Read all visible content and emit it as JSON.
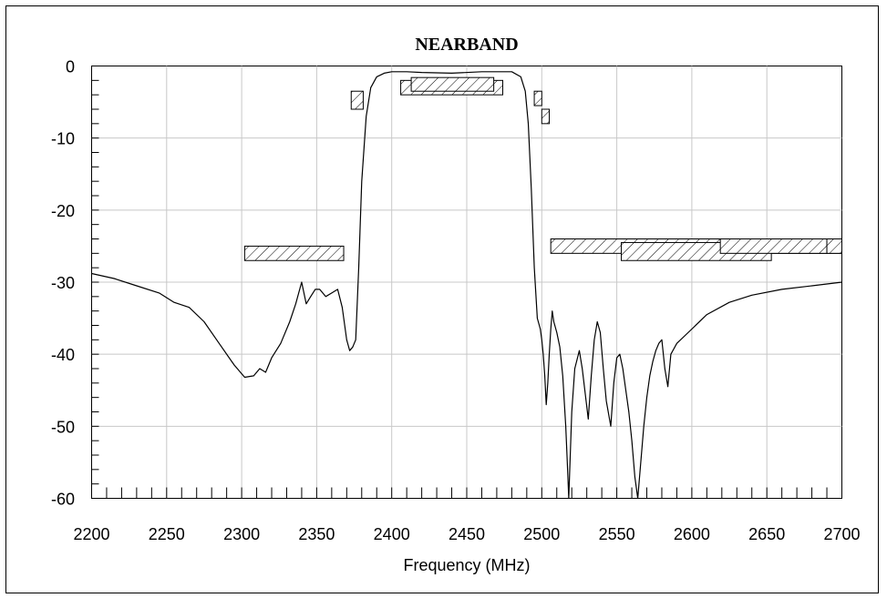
{
  "chart_data": {
    "type": "line",
    "title": "NEARBAND",
    "xlabel": "Frequency (MHz)",
    "ylabel": "",
    "xlim": [
      2200,
      2700
    ],
    "ylim": [
      -60,
      0
    ],
    "xticks": [
      2200,
      2250,
      2300,
      2350,
      2400,
      2450,
      2500,
      2550,
      2600,
      2650,
      2700
    ],
    "yticks": [
      0,
      -10,
      -20,
      -30,
      -40,
      -50,
      -60
    ],
    "grid": true,
    "series": [
      {
        "x": [
          2200,
          2215,
          2230,
          2245,
          2255,
          2265,
          2275,
          2285,
          2295,
          2302,
          2308,
          2312,
          2316,
          2320,
          2326,
          2332,
          2336,
          2340,
          2343,
          2346,
          2349,
          2352,
          2356,
          2360,
          2364,
          2367,
          2370,
          2372,
          2374,
          2376,
          2378,
          2380,
          2383,
          2386,
          2390,
          2395,
          2400,
          2410,
          2420,
          2440,
          2460,
          2480,
          2486,
          2489,
          2491,
          2493,
          2495,
          2497,
          2499,
          2500,
          2501,
          2502,
          2503,
          2504,
          2505,
          2506,
          2507,
          2508,
          2510,
          2512,
          2514,
          2516,
          2517,
          2518,
          2520,
          2522,
          2525,
          2527,
          2529,
          2531,
          2533,
          2535,
          2537,
          2539,
          2541,
          2543,
          2546,
          2548,
          2550,
          2552,
          2554,
          2556,
          2558,
          2560,
          2562,
          2564,
          2566,
          2568,
          2570,
          2572,
          2574,
          2576,
          2578,
          2580,
          2582,
          2584,
          2586,
          2590,
          2600,
          2610,
          2625,
          2640,
          2660,
          2680,
          2700
        ],
        "y": [
          -28.8,
          -29.5,
          -30.5,
          -31.5,
          -32.8,
          -33.5,
          -35.5,
          -38.5,
          -41.5,
          -43.2,
          -43.0,
          -42.0,
          -42.5,
          -40.5,
          -38.5,
          -35.5,
          -33.0,
          -30.0,
          -33.0,
          -32.0,
          -31.0,
          -31.0,
          -32.0,
          -31.5,
          -31.0,
          -33.5,
          -38.0,
          -39.5,
          -39.0,
          -38.0,
          -28.0,
          -16.0,
          -7.0,
          -3.0,
          -1.5,
          -1.0,
          -0.8,
          -0.8,
          -0.9,
          -1.0,
          -0.8,
          -0.8,
          -1.5,
          -3.5,
          -8.0,
          -17.0,
          -28.0,
          -35.0,
          -36.5,
          -38.0,
          -40.0,
          -43.0,
          -47.0,
          -44.0,
          -40.0,
          -36.5,
          -34.0,
          -35.5,
          -37.0,
          -39.0,
          -43.0,
          -50.0,
          -55.0,
          -60.0,
          -48.0,
          -42.0,
          -39.5,
          -42.0,
          -45.5,
          -49.0,
          -43.0,
          -38.0,
          -35.5,
          -37.0,
          -42.0,
          -46.5,
          -50.0,
          -44.0,
          -40.5,
          -40.0,
          -42.0,
          -45.0,
          -48.0,
          -52.0,
          -57.0,
          -60.0,
          -55.0,
          -50.0,
          -46.0,
          -43.0,
          -41.0,
          -39.5,
          -38.5,
          -38.0,
          -42.0,
          -44.5,
          -40.0,
          -38.5,
          -36.5,
          -34.5,
          -32.8,
          -31.8,
          -31.0,
          -30.5,
          -30.0
        ]
      }
    ],
    "masks": [
      {
        "x1": 2302,
        "x2": 2368,
        "y_top": -25,
        "y_bot": -27
      },
      {
        "x1": 2373,
        "x2": 2381,
        "y_top": -3.5,
        "y_bot": -6
      },
      {
        "x1": 2406,
        "x2": 2474,
        "y_top": -2,
        "y_bot": -4
      },
      {
        "x1": 2413,
        "x2": 2468,
        "y_top": -1.6,
        "y_bot": -3.5
      },
      {
        "x1": 2495,
        "x2": 2500,
        "y_top": -3.5,
        "y_bot": -5.5
      },
      {
        "x1": 2500,
        "x2": 2505,
        "y_top": -6,
        "y_bot": -8
      },
      {
        "x1": 2506,
        "x2": 2700,
        "y_top": -24,
        "y_bot": -26
      },
      {
        "x1": 2553,
        "x2": 2653,
        "y_top": -24.5,
        "y_bot": -27
      },
      {
        "x1": 2619,
        "x2": 2690,
        "y_top": -24,
        "y_bot": -26
      },
      {
        "x1": 2690,
        "x2": 2700,
        "y_top": -24,
        "y_bot": -26
      }
    ]
  }
}
